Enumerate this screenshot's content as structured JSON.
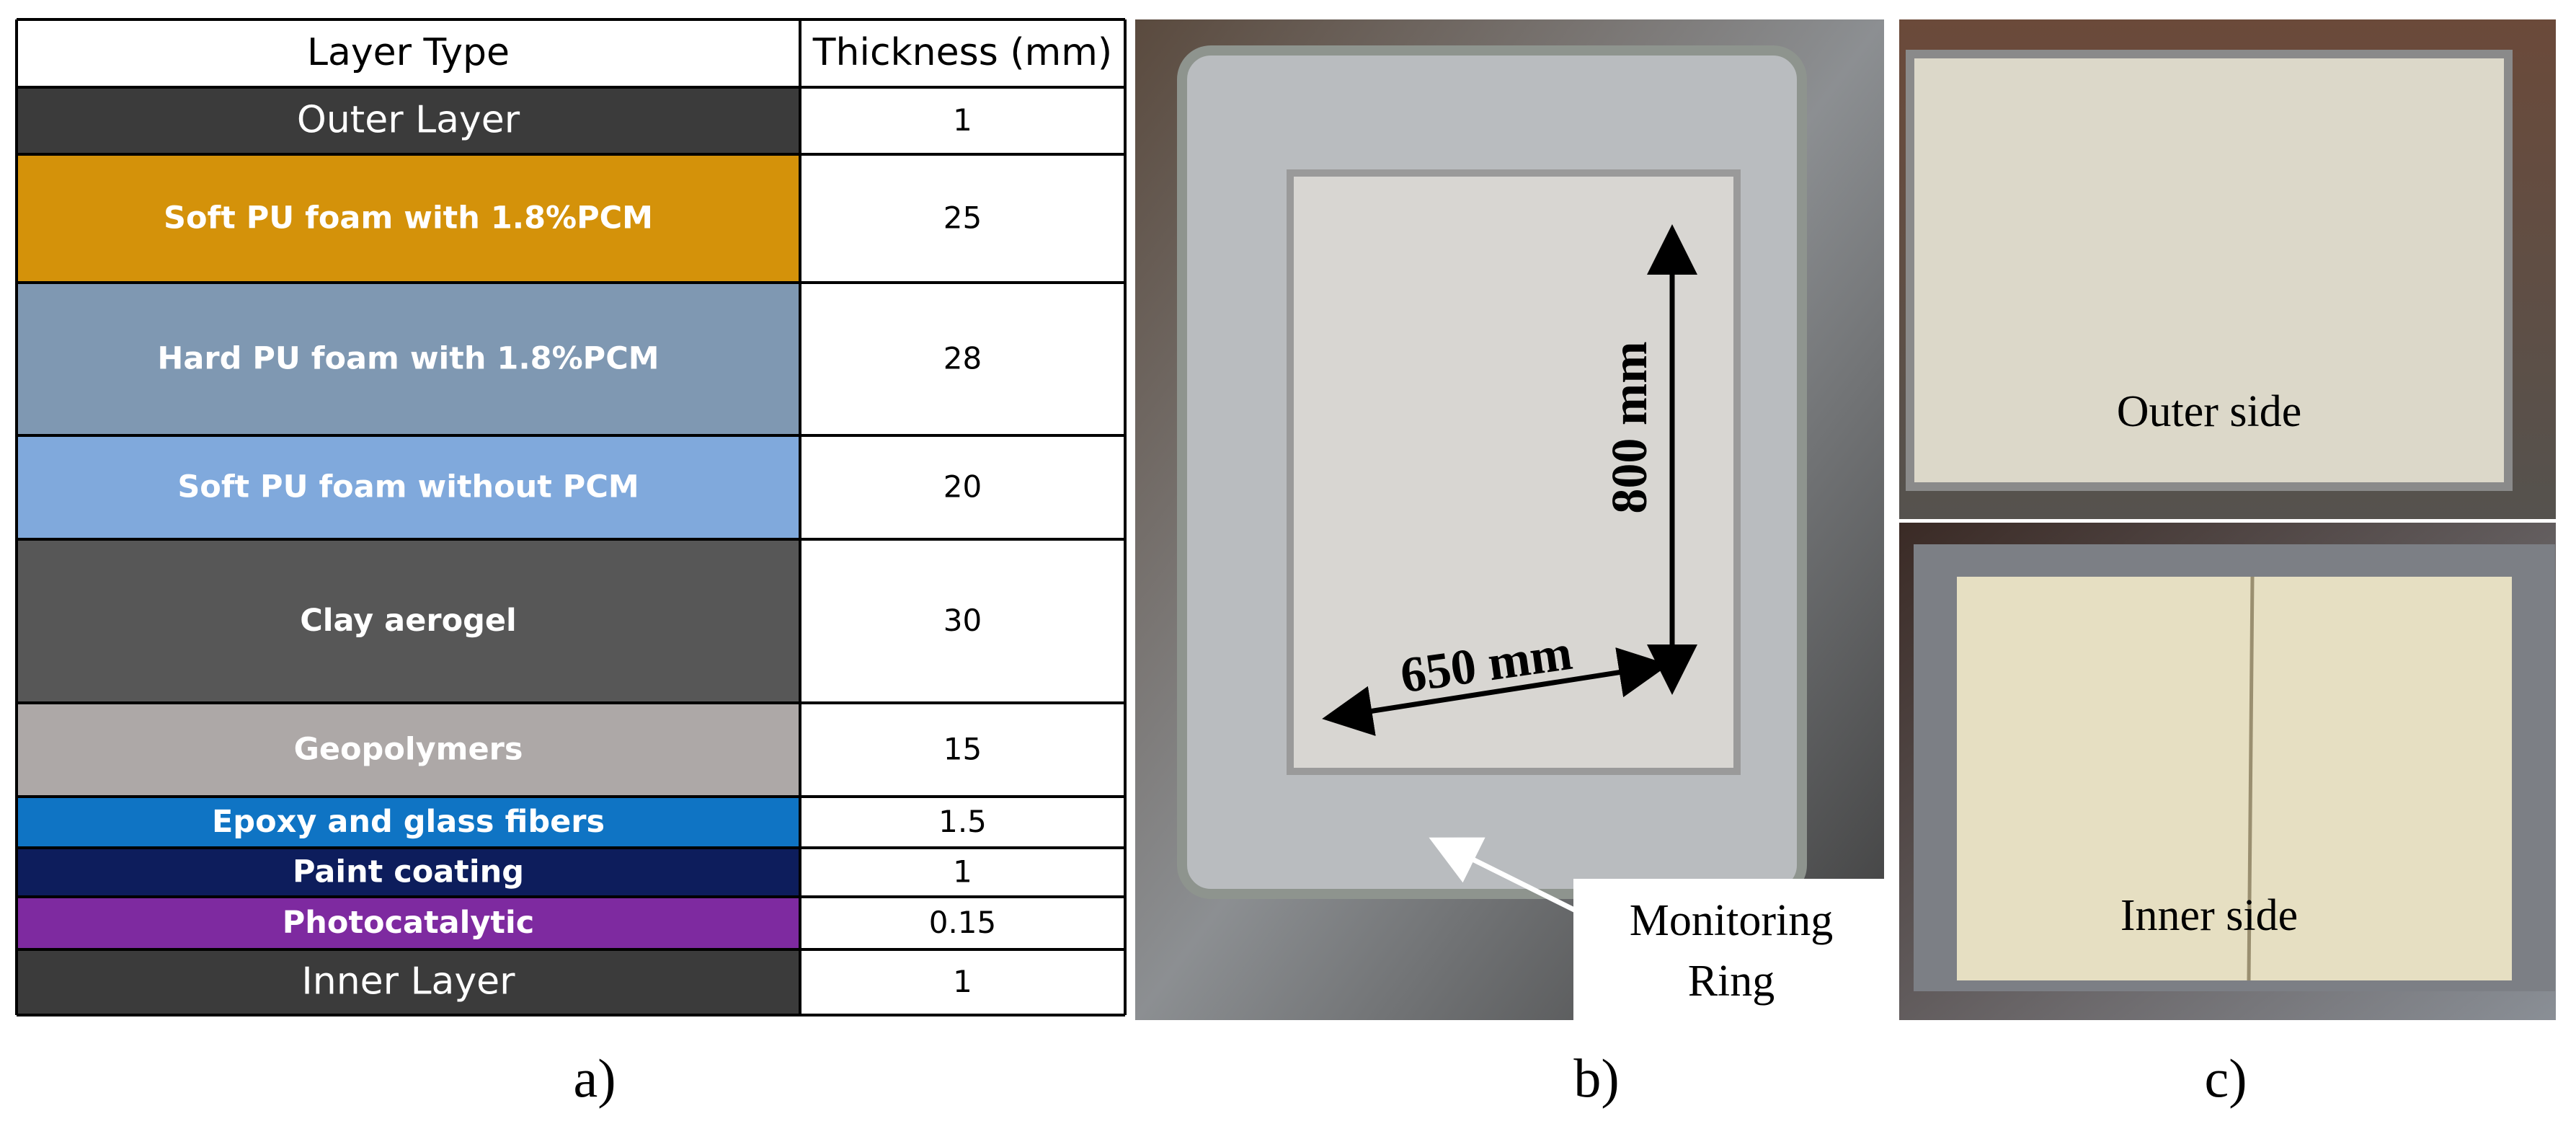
{
  "table": {
    "header": [
      "Layer Type",
      "Thickness (mm)"
    ],
    "rows": [
      {
        "layer": "Outer Layer",
        "thickness": 1,
        "color": "#3b3b3b"
      },
      {
        "layer": "Soft PU foam with 1.8%PCM",
        "thickness": 25,
        "color": "#d4920a"
      },
      {
        "layer": "Hard PU foam with 1.8%PCM",
        "thickness": 28,
        "color": "#7f98b2"
      },
      {
        "layer": "Soft PU foam without PCM",
        "thickness": 20,
        "color": "#80a9dc"
      },
      {
        "layer": "Clay aerogel",
        "thickness": 30,
        "color": "#575757"
      },
      {
        "layer": "Geopolymers",
        "thickness": 15,
        "color": "#ada8a7"
      },
      {
        "layer": "Epoxy and glass fibers",
        "thickness": 1.5,
        "color": "#0f74c4"
      },
      {
        "layer": "Paint coating",
        "thickness": 1,
        "color": "#0d1d5c"
      },
      {
        "layer": "Photocatalytic",
        "thickness": 0.15,
        "color": "#7e2aa0"
      },
      {
        "layer": "Inner Layer",
        "thickness": 1,
        "color": "#3b3b3b"
      }
    ]
  },
  "photo_b": {
    "height_label": "800 mm",
    "width_label": "650 mm",
    "callout": [
      "Monitoring",
      "Ring"
    ]
  },
  "photo_c": {
    "top_label": "Outer side",
    "bottom_label": "Inner side"
  },
  "panel_labels": [
    "a)",
    "b)",
    "c)"
  ]
}
